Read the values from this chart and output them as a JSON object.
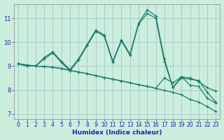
{
  "title": "",
  "xlabel": "Humidex (Indice chaleur)",
  "background_color": "#cceedd",
  "grid_color": "#aacccc",
  "line_color": "#1a7a6a",
  "xlim": [
    -0.5,
    23.5
  ],
  "ylim": [
    6.8,
    11.6
  ],
  "yticks": [
    7,
    8,
    9,
    10,
    11
  ],
  "xticks": [
    0,
    1,
    2,
    3,
    4,
    5,
    6,
    7,
    8,
    9,
    10,
    11,
    12,
    13,
    14,
    15,
    16,
    17,
    18,
    19,
    20,
    21,
    22,
    23
  ],
  "lines": [
    {
      "x": [
        0,
        1,
        2,
        3,
        4,
        5,
        6,
        7,
        8,
        9,
        10,
        11,
        12,
        13,
        14,
        15,
        16,
        17,
        18,
        19,
        20,
        21,
        22,
        23
      ],
      "y": [
        9.1,
        9.05,
        9.0,
        9.35,
        9.6,
        9.2,
        8.85,
        9.3,
        9.9,
        10.5,
        10.3,
        9.2,
        10.1,
        9.5,
        10.8,
        11.35,
        11.1,
        9.3,
        8.1,
        8.55,
        8.2,
        8.15,
        7.65,
        7.45
      ]
    },
    {
      "x": [
        0,
        1,
        2,
        3,
        4,
        5,
        6,
        7,
        8,
        9,
        10,
        11,
        12,
        13,
        14,
        15,
        16,
        17,
        18,
        19,
        20,
        21,
        22,
        23
      ],
      "y": [
        9.1,
        9.0,
        9.0,
        9.3,
        9.55,
        9.15,
        8.8,
        9.25,
        9.85,
        10.45,
        10.25,
        9.15,
        10.05,
        9.45,
        10.75,
        11.2,
        11.0,
        9.2,
        8.1,
        8.5,
        8.45,
        8.4,
        7.9,
        7.5
      ]
    },
    {
      "x": [
        0,
        1,
        2,
        3,
        4,
        5,
        6,
        7,
        8,
        9,
        10,
        11,
        12,
        13,
        14,
        15,
        16,
        17,
        18,
        19,
        20,
        21,
        22,
        23
      ],
      "y": [
        9.1,
        9.0,
        9.0,
        8.98,
        8.95,
        8.9,
        8.82,
        8.75,
        8.68,
        8.6,
        8.52,
        8.45,
        8.38,
        8.3,
        8.22,
        8.15,
        8.07,
        8.5,
        8.3,
        8.55,
        8.5,
        8.35,
        8.1,
        7.95
      ]
    },
    {
      "x": [
        0,
        1,
        2,
        3,
        4,
        5,
        6,
        7,
        8,
        9,
        10,
        11,
        12,
        13,
        14,
        15,
        16,
        17,
        18,
        19,
        20,
        21,
        22,
        23
      ],
      "y": [
        9.1,
        9.0,
        9.0,
        8.98,
        8.95,
        8.9,
        8.82,
        8.75,
        8.68,
        8.6,
        8.52,
        8.45,
        8.38,
        8.3,
        8.22,
        8.15,
        8.07,
        7.98,
        7.9,
        7.8,
        7.6,
        7.5,
        7.3,
        7.1
      ]
    }
  ]
}
